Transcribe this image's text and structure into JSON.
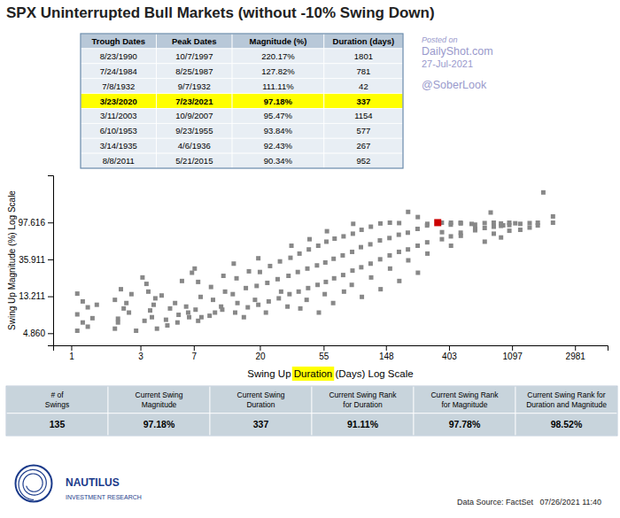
{
  "chart_data": [
    {
      "type": "table",
      "title": "SPX Uninterrupted Bull Markets (without -10% Swing Down)",
      "columns": [
        "Trough Dates",
        "Peak Dates",
        "Magnitude (%)",
        "Duration (days)"
      ],
      "rows": [
        [
          "8/23/1990",
          "10/7/1997",
          "220.17%",
          "1801"
        ],
        [
          "7/24/1984",
          "8/25/1987",
          "127.82%",
          "781"
        ],
        [
          "7/8/1932",
          "9/7/1932",
          "111.11%",
          "42"
        ],
        [
          "3/23/2020",
          "7/23/2021",
          "97.18%",
          "337"
        ],
        [
          "3/11/2003",
          "10/9/2007",
          "95.47%",
          "1154"
        ],
        [
          "6/10/1953",
          "9/23/1955",
          "93.84%",
          "577"
        ],
        [
          "3/14/1935",
          "4/6/1936",
          "92.43%",
          "267"
        ],
        [
          "8/8/2011",
          "5/21/2015",
          "90.34%",
          "952"
        ]
      ],
      "color": "#B8C8D8",
      "colors": [
        "#E8EEF4",
        "#E8EEF4",
        "#E8EEF4",
        "#FFFF00",
        "#E8EEF4",
        "#E8EEF4",
        "#E8EEF4",
        "#E8EEF4"
      ],
      "annotations": [
        "Posted on",
        "DailyShot.com",
        "27-Jul-2021",
        "@SoberLook",
        "Data Source: FactSet   07/26/2021 11:40",
        "NAUTILUS",
        "INVESTMENT RESEARCH"
      ]
    },
    {
      "type": "scatter",
      "xlabel": [
        "Swing Up ",
        "Duration",
        " (Days) Log Scale"
      ],
      "ylabel": "Swing Up Magnitude (%) Log Scale",
      "log": true,
      "marker": "square",
      "xlim": [
        0.75,
        5000
      ],
      "ylim": [
        3.5,
        350
      ],
      "xticks": [
        1,
        3,
        7,
        20,
        55,
        148,
        403,
        1097,
        2981
      ],
      "yticks": [
        {
          "value": 4.86,
          "label": "4.860"
        },
        13.211,
        35.911,
        97.616
      ],
      "series": [
        {
          "color": "#888888",
          "x": [
            1.1,
            1.2,
            1.1,
            1.3,
            1.2,
            1.1,
            1.4,
            1.3,
            1.5,
            2.0,
            2.1,
            2.3,
            2.0,
            2.2,
            2.1,
            2.5,
            2.4,
            2.8,
            2.6,
            3.2,
            3.5,
            3.8,
            3.3,
            3.6,
            3.1,
            3.9,
            3.4,
            3.7,
            4.5,
            4.8,
            4.2,
            4.6,
            5.5,
            5.2,
            5.8,
            5.4,
            6.5,
            6.2,
            6.8,
            6.4,
            7.5,
            7.2,
            7.8,
            7.5,
            7.1,
            7.9,
            9.0,
            9.5,
            9.2,
            9.8,
            11.0,
            11.5,
            11.2,
            10.8,
            13.5,
            13.0,
            13.8,
            13.2,
            14.0,
            16.5,
            16.0,
            16.8,
            15.5,
            19.5,
            19.0,
            20.0,
            19.5,
            18.5,
            23.0,
            22.5,
            23.5,
            22.0,
            27.0,
            26.5,
            27.5,
            28.0,
            32.0,
            31.5,
            32.5,
            33.0,
            31.0,
            37.0,
            36.5,
            37.5,
            38.0,
            43.0,
            42.5,
            43.5,
            44.0,
            42.0,
            50.0,
            49.5,
            50.5,
            51.0,
            57.0,
            56.5,
            57.5,
            58.0,
            56.0,
            65.0,
            64.5,
            65.5,
            64.0,
            75.0,
            74.5,
            75.5,
            76.0,
            87.0,
            86.5,
            87.5,
            88.0,
            86.0,
            100.0,
            99.5,
            100.5,
            101.0,
            116.0,
            115.5,
            116.5,
            117.0,
            135.0,
            134.5,
            135.5,
            136.0,
            157.0,
            156.5,
            157.5,
            158.0,
            182.0,
            181.5,
            182.5,
            183.0,
            210.0,
            209.5,
            210.5,
            211.0,
            245.0,
            244.5,
            245.5,
            246.0,
            285.0,
            284.5,
            285.5,
            286.0,
            360.0,
            359.5,
            360.5,
            415.0,
            414.5,
            415.5,
            416.0,
            485.0,
            484.5,
            485.5,
            486.0,
            577,
            610.0,
            609.5,
            610.5,
            710.0,
            709.5,
            710.5,
            781,
            820.0,
            819.5,
            820.5,
            920.0,
            919.5,
            920.5,
            952,
            1050.0,
            1049.5,
            1050.5,
            1154,
            1250.0,
            1249.5,
            1450.0,
            1449.5,
            1650.0,
            1649.5,
            1801,
            2100.0,
            2100.0
          ],
          "values": [
            5.2,
            6.5,
            8.1,
            9.8,
            11.5,
            14.2,
            7.3,
            5.8,
            10.5,
            5.5,
            7.2,
            9.5,
            12.0,
            16.0,
            6.5,
            8.5,
            11.0,
            5.2,
            14.0,
            6.8,
            9.0,
            12.5,
            18.5,
            7.5,
            22.0,
            5.5,
            15.0,
            10.5,
            7.0,
            9.5,
            13.5,
            6.0,
            8.0,
            11.0,
            20.0,
            6.5,
            7.5,
            10.0,
            25.0,
            8.5,
            6.8,
            9.2,
            13.0,
            19.5,
            28.0,
            7.5,
            7.8,
            12.0,
            17.0,
            8.5,
            9.2,
            15.0,
            23.0,
            10.0,
            8.5,
            14.0,
            21.5,
            32.0,
            11.0,
            9.8,
            16.5,
            26.0,
            7.5,
            10.5,
            17.5,
            25.5,
            37.0,
            12.0,
            11.5,
            19.0,
            30.0,
            8.5,
            12.5,
            21.0,
            34.0,
            15.0,
            14.0,
            23.0,
            37.5,
            52.0,
            10.0,
            15.0,
            25.5,
            42.0,
            9.5,
            16.5,
            28.0,
            47.0,
            62.0,
            12.0,
            18.0,
            30.5,
            52.0,
            8.5,
            19.5,
            33.0,
            58.0,
            77.0,
            14.0,
            21.5,
            36.5,
            63.0,
            11.0,
            23.5,
            40.0,
            67.0,
            15.0,
            26.5,
            44.0,
            72.0,
            94.0,
            18.0,
            29.0,
            50.0,
            80.0,
            13.0,
            32.0,
            54.0,
            87.0,
            22.0,
            36.0,
            60.0,
            95.0,
            16.0,
            40.0,
            64.0,
            97.0,
            28.0,
            44.0,
            70.0,
            96.0,
            20.0,
            47.0,
            74.0,
            130.0,
            35.0,
            52.0,
            82.0,
            113.0,
            25.0,
            57.0,
            90.0,
            94.0,
            42.0,
            62.0,
            97.0,
            75.0,
            67.0,
            92.0,
            97.0,
            52.0,
            74.0,
            97.0,
            95.0,
            68.0,
            93.84,
            79.0,
            92.0,
            82.0,
            84.0,
            96.0,
            58.0,
            127.82,
            87.0,
            97.0,
            72.0,
            89.0,
            95.0,
            65.0,
            90.34,
            91.0,
            97.0,
            78.0,
            95.47,
            94.0,
            80.0,
            96.0,
            85.0,
            97.0,
            90.0,
            220.17,
            97.0,
            115.0
          ]
        },
        {
          "color": "#CC0000",
          "x": [
            337
          ],
          "values": [
            97.18
          ]
        }
      ]
    },
    {
      "type": "table",
      "columns": [
        "# of\nSwings",
        "Current Swing\nMagnitude",
        "Current Swing\nDuration",
        "Current Swing Rank\nfor Duration",
        "Current Swing Rank\nfor Magnitude",
        "Current Swing Rank for\nDuration and Magnitude"
      ],
      "rows": [
        [
          "135",
          "97.18%",
          "337",
          "91.11%",
          "97.78%",
          "98.52%"
        ]
      ],
      "color": "#C8D4DC"
    }
  ]
}
